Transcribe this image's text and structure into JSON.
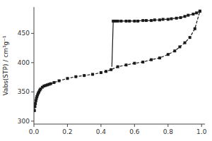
{
  "chart_data": {
    "type": "line",
    "y_label": "Vabs(STP) / cm³g⁻¹",
    "xlim": [
      0.0,
      1.02
    ],
    "ylim": [
      295,
      495
    ],
    "xticks": [
      {
        "value": 0.0,
        "label": "0.0"
      },
      0.2,
      0.4,
      0.6,
      0.8,
      {
        "value": 1.0,
        "label": "1.0"
      }
    ],
    "yticks": [
      300,
      350,
      400,
      450
    ],
    "grid": false,
    "series": [
      {
        "color": "#1a1a1a",
        "marker": "square",
        "line_style": "dashed",
        "x": [
          0.003,
          0.006,
          0.009,
          0.012,
          0.015,
          0.018,
          0.022,
          0.026,
          0.03,
          0.035,
          0.04,
          0.05,
          0.06,
          0.07,
          0.08,
          0.09,
          0.1,
          0.12,
          0.15,
          0.2,
          0.25,
          0.3,
          0.35,
          0.4,
          0.43,
          0.46,
          0.5,
          0.55,
          0.6,
          0.65,
          0.7,
          0.75,
          0.8,
          0.84,
          0.87,
          0.9,
          0.93,
          0.96,
          0.99
        ],
        "values": [
          318,
          325,
          330,
          335,
          339,
          342,
          345,
          348,
          350,
          353,
          355,
          358,
          360,
          361,
          362,
          363,
          364,
          366,
          369,
          373,
          376,
          378,
          380,
          383,
          385,
          388,
          393,
          396,
          399,
          401,
          405,
          408,
          414,
          420,
          427,
          434,
          443,
          458,
          488
        ]
      },
      {
        "color": "#1a1a1a",
        "marker": "square",
        "line_style": "dashed",
        "x": [
          0.99,
          0.97,
          0.95,
          0.92,
          0.9,
          0.875,
          0.85,
          0.82,
          0.8,
          0.77,
          0.75,
          0.72,
          0.7,
          0.67,
          0.65,
          0.62,
          0.6,
          0.57,
          0.55,
          0.52,
          0.5,
          0.485,
          0.473
        ],
        "values": [
          488,
          485,
          483,
          481,
          479,
          477,
          476,
          475,
          474,
          474,
          473,
          473,
          472,
          472,
          472,
          471,
          471,
          471,
          471,
          471,
          471,
          471,
          471
        ]
      },
      {
        "color": "#1a1a1a",
        "line_style": "solid",
        "x": [
          0.473,
          0.465
        ],
        "values": [
          471,
          393
        ]
      }
    ]
  }
}
